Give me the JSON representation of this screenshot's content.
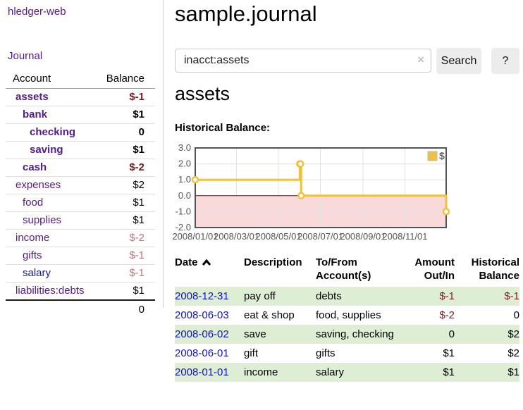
{
  "colors": {
    "link_purple": "#551a8b",
    "link_blue": "#1212cc",
    "negative": "#84181b",
    "negative_faded": "#c0737c",
    "row_highlight_green": "#ddeed4",
    "button_bg": "#ececec",
    "divider": "#cccccc"
  },
  "sidebar": {
    "app_title": "hledger-web",
    "journal_label": "Journal",
    "accounts_header": {
      "account": "Account",
      "balance": "Balance"
    },
    "accounts": [
      {
        "name": "assets",
        "depth": 1,
        "bold": true,
        "link_color": "purple",
        "balance": "$-1",
        "balance_class": "neg"
      },
      {
        "name": "bank",
        "depth": 2,
        "bold": true,
        "link_color": "purple",
        "balance": "$1",
        "balance_class": ""
      },
      {
        "name": "checking",
        "depth": 3,
        "bold": true,
        "link_color": "purple",
        "balance": "0",
        "balance_class": ""
      },
      {
        "name": "saving",
        "depth": 3,
        "bold": true,
        "link_color": "purple",
        "balance": "$1",
        "balance_class": ""
      },
      {
        "name": "cash",
        "depth": 2,
        "bold": true,
        "link_color": "purple",
        "balance": "$-2",
        "balance_class": "neg"
      },
      {
        "name": "expenses",
        "depth": 1,
        "bold": false,
        "link_color": "purple",
        "balance": "$2",
        "balance_class": ""
      },
      {
        "name": "food",
        "depth": 2,
        "bold": false,
        "link_color": "purple",
        "balance": "$1",
        "balance_class": ""
      },
      {
        "name": "supplies",
        "depth": 2,
        "bold": false,
        "link_color": "purple",
        "balance": "$1",
        "balance_class": ""
      },
      {
        "name": "income",
        "depth": 1,
        "bold": false,
        "link_color": "purple",
        "balance": "$-2",
        "balance_class": "neg-faded"
      },
      {
        "name": "gifts",
        "depth": 2,
        "bold": false,
        "link_color": "purple",
        "balance": "$-1",
        "balance_class": "neg-faded"
      },
      {
        "name": "salary",
        "depth": 2,
        "bold": false,
        "link_color": "blue",
        "balance": "$-1",
        "balance_class": "neg-faded"
      },
      {
        "name": "liabilities:debts",
        "depth": 1,
        "bold": false,
        "link_color": "purple",
        "balance": "$1",
        "balance_class": ""
      }
    ],
    "total_balance": "0"
  },
  "main": {
    "title": "sample.journal",
    "search": {
      "query": "inacct:assets",
      "clear_icon": "×",
      "button_label": "Search",
      "help_label": "?"
    },
    "account_heading": "assets",
    "chart_title": "Historical Balance:"
  },
  "chart_data": {
    "type": "line",
    "title": "Historical Balance:",
    "x_range": [
      "2008-01-01",
      "2008-12-31"
    ],
    "y_range": [
      -2,
      3
    ],
    "x_ticks": [
      "2008/01/01",
      "2008/03/01",
      "2008/05/01",
      "2008/07/01",
      "2008/09/01",
      "2008/11/01"
    ],
    "y_ticks": [
      3.0,
      2.0,
      1.0,
      0.0,
      -1.0,
      -2.0
    ],
    "legend": {
      "label": "$",
      "position": "top-right"
    },
    "series": [
      {
        "name": "$",
        "color": "#edc240",
        "step": true,
        "points": [
          {
            "x": "2008-01-01",
            "y": 1
          },
          {
            "x": "2008-06-01",
            "y": 2
          },
          {
            "x": "2008-06-02",
            "y": 2
          },
          {
            "x": "2008-06-03",
            "y": 0
          },
          {
            "x": "2008-12-31",
            "y": -1
          }
        ]
      }
    ],
    "negative_region_fill": "#f9d9d9",
    "zero_line_color": "#8b0000",
    "grid": {
      "border_color": "#545454",
      "line_color": "#e2e2e2",
      "tick_label_color": "#545454",
      "background": "#ffffff"
    }
  },
  "register": {
    "headers": {
      "date": "Date",
      "description": "Description",
      "accounts": "To/From Account(s)",
      "amount": "Amount Out/In",
      "balance": "Historical Balance"
    },
    "sort": {
      "column": "date",
      "direction": "ascending"
    },
    "rows": [
      {
        "date": "2008-12-31",
        "description": "pay off",
        "accounts": "debts",
        "amount": "$-1",
        "amount_class": "neg",
        "balance": "$-1",
        "balance_class": "neg"
      },
      {
        "date": "2008-06-03",
        "description": "eat & shop",
        "accounts": "food, supplies",
        "amount": "$-2",
        "amount_class": "neg",
        "balance": "0",
        "balance_class": ""
      },
      {
        "date": "2008-06-02",
        "description": "save",
        "accounts": "saving, checking",
        "amount": "0",
        "amount_class": "",
        "balance": "$2",
        "balance_class": ""
      },
      {
        "date": "2008-06-01",
        "description": "gift",
        "accounts": "gifts",
        "amount": "$1",
        "amount_class": "",
        "balance": "$2",
        "balance_class": ""
      },
      {
        "date": "2008-01-01",
        "description": "income",
        "accounts": "salary",
        "amount": "$1",
        "amount_class": "",
        "balance": "$1",
        "balance_class": ""
      }
    ]
  }
}
